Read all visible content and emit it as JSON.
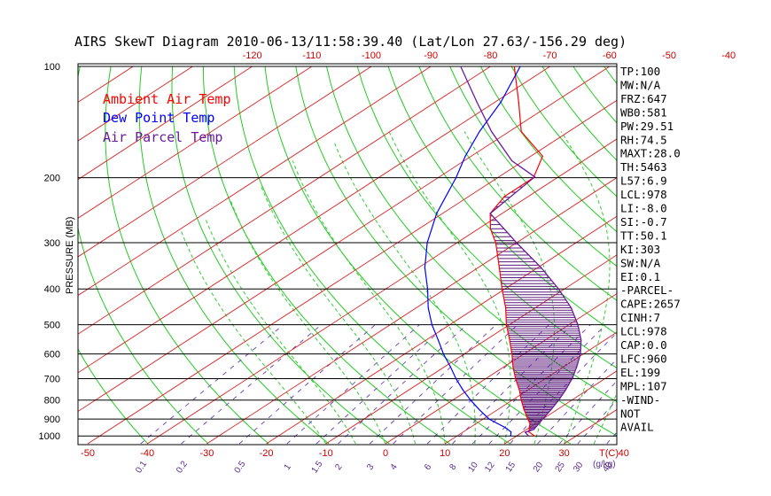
{
  "chart_data": {
    "type": "line",
    "title": "AIRS SkewT Diagram 2010-06-13/11:58:39.40 (Lat/Lon 27.63/-156.29 deg)",
    "ylabel": "PRESSURE (MB)",
    "xlabel_temp": "T(C)",
    "xlabel_mixing": "(g/kg)",
    "ylim": [
      1050,
      100
    ],
    "xlim_bottom": [
      -50,
      40
    ],
    "pressure_ticks": [
      100,
      200,
      300,
      400,
      500,
      600,
      700,
      800,
      900,
      1000
    ],
    "bottom_temp_ticks": [
      -50,
      -40,
      -30,
      -20,
      -10,
      0,
      10,
      20,
      30,
      40
    ],
    "top_temp_ticks": [
      -120,
      -110,
      -100,
      -90,
      -80,
      -70,
      -60,
      -50,
      -40
    ],
    "mixing_ratio_labels": [
      "0.1",
      "0.2",
      "0.5",
      "1",
      "1.5",
      "2",
      "3",
      "4",
      "6",
      "8",
      "10",
      "12",
      "15",
      "20",
      "25",
      "30",
      "40"
    ],
    "legend": [
      {
        "label": "Ambient Air Temp",
        "color": "#ff0000"
      },
      {
        "label": "Dew Point Temp",
        "color": "#0000ff"
      },
      {
        "label": "Air Parcel Temp",
        "color": "#6a1b9a"
      }
    ],
    "series": [
      {
        "name": "Ambient Air Temp",
        "color": "#ff0000",
        "points": [
          [
            1000,
            23
          ],
          [
            975,
            21
          ],
          [
            950,
            20
          ],
          [
            925,
            19
          ],
          [
            900,
            17.5
          ],
          [
            850,
            14.5
          ],
          [
            800,
            11.5
          ],
          [
            750,
            8.5
          ],
          [
            700,
            5
          ],
          [
            650,
            1.5
          ],
          [
            600,
            -2
          ],
          [
            550,
            -6
          ],
          [
            500,
            -10.5
          ],
          [
            450,
            -15
          ],
          [
            400,
            -20.5
          ],
          [
            350,
            -26.5
          ],
          [
            300,
            -33.5
          ],
          [
            275,
            -38
          ],
          [
            250,
            -42
          ],
          [
            225,
            -44
          ],
          [
            200,
            -44
          ],
          [
            175,
            -48
          ],
          [
            150,
            -58
          ],
          [
            125,
            -66
          ],
          [
            100,
            -76
          ]
        ]
      },
      {
        "name": "Dew Point Temp",
        "color": "#0000ff",
        "points": [
          [
            1000,
            19
          ],
          [
            975,
            18
          ],
          [
            950,
            16
          ],
          [
            925,
            13.5
          ],
          [
            900,
            11
          ],
          [
            850,
            7
          ],
          [
            800,
            3
          ],
          [
            750,
            -1
          ],
          [
            700,
            -5
          ],
          [
            650,
            -9
          ],
          [
            600,
            -13.5
          ],
          [
            550,
            -18
          ],
          [
            500,
            -23
          ],
          [
            450,
            -28
          ],
          [
            400,
            -33
          ],
          [
            350,
            -39
          ],
          [
            300,
            -45
          ],
          [
            250,
            -51
          ],
          [
            200,
            -57
          ],
          [
            175,
            -61
          ],
          [
            150,
            -65
          ],
          [
            125,
            -69
          ],
          [
            100,
            -75
          ]
        ]
      },
      {
        "name": "Air Parcel Temp",
        "color": "#6a1b9a",
        "points": [
          [
            1000,
            22
          ],
          [
            978,
            20.5
          ],
          [
            960,
            21.2
          ],
          [
            900,
            20
          ],
          [
            850,
            19
          ],
          [
            800,
            17.8
          ],
          [
            750,
            16.3
          ],
          [
            700,
            14.5
          ],
          [
            650,
            12.2
          ],
          [
            600,
            9.5
          ],
          [
            550,
            6
          ],
          [
            500,
            1.5
          ],
          [
            450,
            -4
          ],
          [
            400,
            -11
          ],
          [
            350,
            -19.5
          ],
          [
            300,
            -30
          ],
          [
            250,
            -42
          ],
          [
            199,
            -44
          ],
          [
            180,
            -52
          ],
          [
            150,
            -63
          ],
          [
            125,
            -73
          ],
          [
            100,
            -85
          ]
        ]
      }
    ],
    "indices": [
      "TP:100",
      "MW:N/A",
      "FRZ:647",
      "WB0:581",
      "PW:29.51",
      "RH:74.5",
      "MAXT:28.0",
      "TH:5463",
      "L57:6.9",
      "LCL:978",
      "LI:-8.0",
      "SI:-0.7",
      "TT:50.1",
      "KI:303",
      "SW:N/A",
      "EI:0.1",
      "-PARCEL-",
      "CAPE:2657",
      "CINH:7",
      "LCL:978",
      "CAP:0.0",
      "LFC:960",
      "EL:199",
      "MPL:107",
      "-WIND-",
      "NOT",
      "AVAIL"
    ],
    "grid": true
  }
}
